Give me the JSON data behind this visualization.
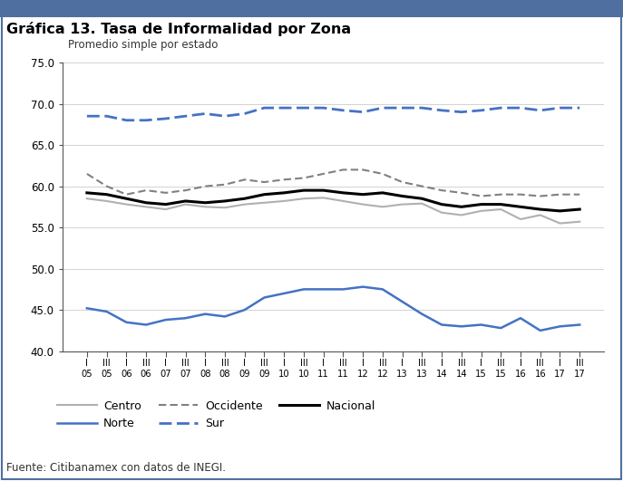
{
  "title": "Gráfica 13. Tasa de Informalidad por Zona",
  "subtitle": "Promedio simple por estado",
  "source": "Fuente: Citibanamex con datos de INEGI.",
  "ylim": [
    40.0,
    75.0
  ],
  "yticks": [
    40.0,
    45.0,
    50.0,
    55.0,
    60.0,
    65.0,
    70.0,
    75.0
  ],
  "background_color": "#ffffff",
  "border_color": "#4f6fa0",
  "top_bar_color": "#4f6fa0",
  "x_top": [
    "I",
    "III",
    "I",
    "III",
    "I",
    "III",
    "I",
    "III",
    "I",
    "III",
    "I",
    "III",
    "I",
    "III",
    "I",
    "III",
    "I",
    "III",
    "I",
    "III",
    "I",
    "III",
    "I",
    "III",
    "I",
    "III"
  ],
  "x_bot": [
    "05",
    "05",
    "06",
    "06",
    "07",
    "07",
    "08",
    "08",
    "09",
    "09",
    "10",
    "10",
    "11",
    "11",
    "12",
    "12",
    "13",
    "13",
    "14",
    "14",
    "15",
    "15",
    "16",
    "16",
    "17",
    "17"
  ],
  "Centro": [
    58.5,
    58.2,
    57.8,
    57.5,
    57.2,
    57.8,
    57.5,
    57.4,
    57.8,
    58.0,
    58.2,
    58.5,
    58.6,
    58.2,
    57.8,
    57.5,
    57.8,
    57.9,
    56.8,
    56.5,
    57.0,
    57.2,
    56.0,
    56.5,
    55.5,
    55.7
  ],
  "Norte": [
    45.2,
    44.8,
    43.5,
    43.2,
    43.8,
    44.0,
    44.5,
    44.2,
    45.0,
    46.5,
    47.0,
    47.5,
    47.5,
    47.5,
    47.8,
    47.5,
    46.0,
    44.5,
    43.2,
    43.0,
    43.2,
    42.8,
    44.0,
    42.5,
    43.0,
    43.2
  ],
  "Occidente": [
    61.5,
    60.0,
    59.0,
    59.5,
    59.2,
    59.5,
    60.0,
    60.2,
    60.8,
    60.5,
    60.8,
    61.0,
    61.5,
    62.0,
    62.0,
    61.5,
    60.5,
    60.0,
    59.5,
    59.2,
    58.8,
    59.0,
    59.0,
    58.8,
    59.0,
    59.0
  ],
  "Sur": [
    68.5,
    68.5,
    68.0,
    68.0,
    68.2,
    68.5,
    68.8,
    68.5,
    68.8,
    69.5,
    69.5,
    69.5,
    69.5,
    69.2,
    69.0,
    69.5,
    69.5,
    69.5,
    69.2,
    69.0,
    69.2,
    69.5,
    69.5,
    69.2,
    69.5,
    69.5
  ],
  "Nacional": [
    59.2,
    59.0,
    58.5,
    58.0,
    57.8,
    58.2,
    58.0,
    58.2,
    58.5,
    59.0,
    59.2,
    59.5,
    59.5,
    59.2,
    59.0,
    59.2,
    58.8,
    58.5,
    57.8,
    57.5,
    57.8,
    57.8,
    57.5,
    57.2,
    57.0,
    57.2
  ],
  "colors": {
    "Centro": "#b0b0b0",
    "Norte": "#4472c4",
    "Occidente": "#808080",
    "Sur": "#4472c4",
    "Nacional": "#000000"
  },
  "linewidths": {
    "Centro": 1.5,
    "Norte": 1.8,
    "Occidente": 1.5,
    "Sur": 2.0,
    "Nacional": 2.2
  }
}
